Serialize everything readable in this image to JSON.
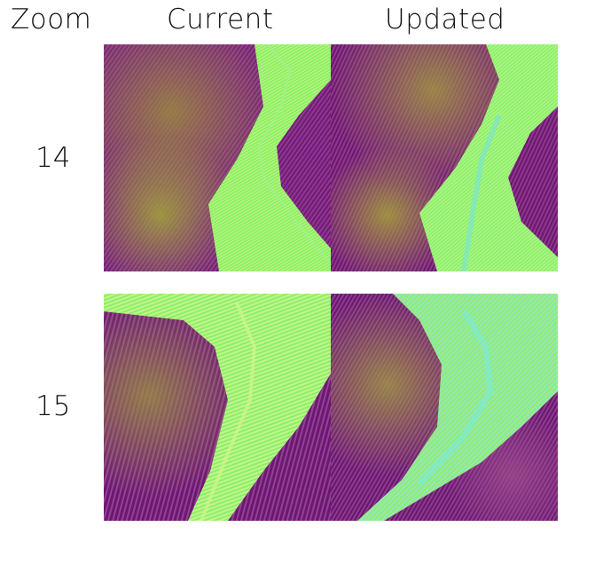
{
  "headers": {
    "zoom": "Zoom",
    "current": "Current",
    "updated": "Updated"
  },
  "rows": [
    {
      "zoom": "14"
    },
    {
      "zoom": "15"
    }
  ],
  "colors": {
    "terrain_dark": "#6b0f6e",
    "terrain_mid": "#7d2f8a",
    "terrain_light": "#8e7a3e",
    "valley_green": "#86f26a",
    "valley_cyan": "#6fe6c8"
  }
}
